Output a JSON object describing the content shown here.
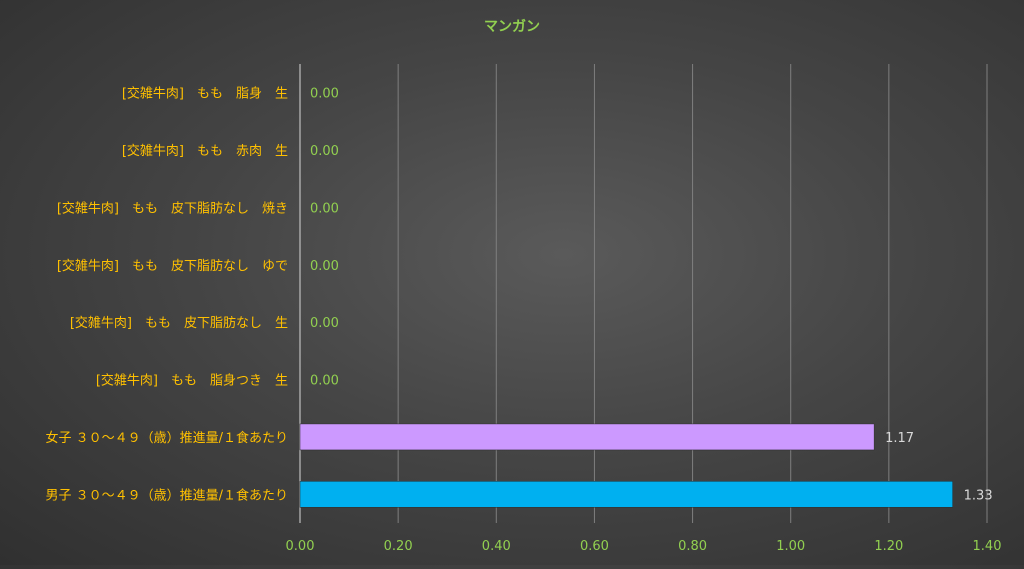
{
  "chart_data": {
    "type": "bar",
    "orientation": "horizontal",
    "title": "マンガン",
    "xlabel": "",
    "ylabel": "",
    "xlim": [
      0,
      1.4
    ],
    "x_ticks": [
      "0.00",
      "0.20",
      "0.40",
      "0.60",
      "0.80",
      "1.00",
      "1.20",
      "1.40"
    ],
    "grid": true,
    "legend": "none",
    "categories": [
      "[交雑牛肉]　もも　脂身　生",
      "[交雑牛肉]　もも　赤肉　生",
      "[交雑牛肉]　もも　皮下脂肪なし　焼き",
      "[交雑牛肉]　もも　皮下脂肪なし　ゆで",
      "[交雑牛肉]　もも　皮下脂肪なし　生",
      "[交雑牛肉]　もも　脂身つき　生",
      "女子 ３０～４９（歳）推進量/１食あたり",
      "男子 ３０～４９（歳）推進量/１食あたり"
    ],
    "values": [
      0.0,
      0.0,
      0.0,
      0.0,
      0.0,
      0.0,
      1.17,
      1.33
    ],
    "value_labels": [
      "0.00",
      "0.00",
      "0.00",
      "0.00",
      "0.00",
      "0.00",
      "1.17",
      "1.33"
    ],
    "bar_colors": [
      "#00b0f0",
      "#00b0f0",
      "#00b0f0",
      "#00b0f0",
      "#00b0f0",
      "#00b0f0",
      "#cc99ff",
      "#00b0f0"
    ],
    "colors": {
      "title": "#92d050",
      "category_label": "#ffc000",
      "tick_label": "#92d050",
      "value_label_zero": "#92d050",
      "value_label": "#d9d9d9",
      "gridline": "#7f7f7f",
      "axis": "#bfbfbf"
    }
  }
}
